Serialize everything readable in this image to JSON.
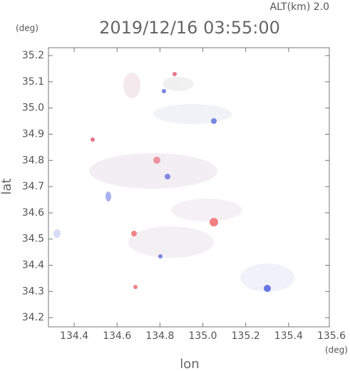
{
  "chart_data": {
    "type": "map",
    "title": "2019/12/16 03:55:00",
    "subtitle": "ALT(km) 2.0",
    "x_label": "lon",
    "y_label": "lat",
    "x_unit": "(deg)",
    "y_unit": "(deg)",
    "xlim": [
      134.28,
      135.59
    ],
    "ylim": [
      34.165,
      35.23
    ],
    "xticks": [
      134.4,
      134.6,
      134.8,
      {
        "value": 135,
        "label": "135.0"
      },
      135.2,
      135.4,
      135.6
    ],
    "yticks": [
      34.2,
      34.3,
      34.4,
      34.5,
      34.6,
      34.7,
      34.8,
      34.9,
      {
        "value": 35,
        "label": "35.0"
      },
      35.1,
      35.2
    ]
  }
}
